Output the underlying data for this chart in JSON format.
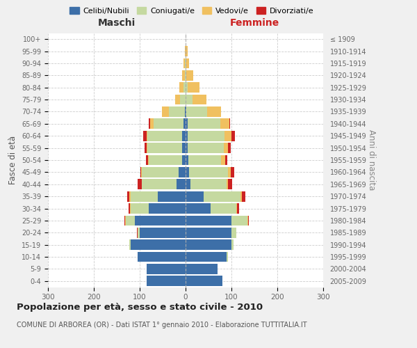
{
  "age_groups_bottom_to_top": [
    "0-4",
    "5-9",
    "10-14",
    "15-19",
    "20-24",
    "25-29",
    "30-34",
    "35-39",
    "40-44",
    "45-49",
    "50-54",
    "55-59",
    "60-64",
    "65-69",
    "70-74",
    "75-79",
    "80-84",
    "85-89",
    "90-94",
    "95-99",
    "100+"
  ],
  "birth_years_bottom_to_top": [
    "2005-2009",
    "2000-2004",
    "1995-1999",
    "1990-1994",
    "1985-1989",
    "1980-1984",
    "1975-1979",
    "1970-1974",
    "1965-1969",
    "1960-1964",
    "1955-1959",
    "1950-1954",
    "1945-1949",
    "1940-1944",
    "1935-1939",
    "1930-1934",
    "1925-1929",
    "1920-1924",
    "1915-1919",
    "1910-1914",
    "≤ 1909"
  ],
  "male": {
    "celibi": [
      85,
      85,
      105,
      120,
      100,
      110,
      80,
      60,
      20,
      15,
      8,
      8,
      8,
      5,
      2,
      0,
      0,
      0,
      0,
      0,
      0
    ],
    "coniugati": [
      0,
      0,
      0,
      2,
      5,
      20,
      40,
      60,
      75,
      80,
      72,
      75,
      75,
      65,
      35,
      12,
      5,
      2,
      2,
      0,
      0
    ],
    "vedovi": [
      0,
      0,
      0,
      0,
      0,
      2,
      1,
      2,
      1,
      2,
      2,
      2,
      2,
      8,
      15,
      10,
      8,
      5,
      3,
      2,
      0
    ],
    "divorziati": [
      0,
      0,
      0,
      0,
      1,
      2,
      3,
      5,
      8,
      2,
      4,
      5,
      8,
      2,
      0,
      0,
      0,
      0,
      0,
      0,
      0
    ]
  },
  "female": {
    "nubili": [
      80,
      70,
      90,
      100,
      100,
      100,
      55,
      40,
      10,
      8,
      6,
      5,
      5,
      5,
      2,
      0,
      0,
      0,
      0,
      0,
      0
    ],
    "coniugate": [
      0,
      0,
      2,
      5,
      10,
      35,
      55,
      80,
      80,
      85,
      72,
      78,
      80,
      70,
      45,
      15,
      5,
      2,
      0,
      0,
      0
    ],
    "vedove": [
      0,
      0,
      0,
      0,
      0,
      1,
      2,
      2,
      3,
      5,
      8,
      10,
      15,
      20,
      30,
      30,
      25,
      15,
      8,
      5,
      0
    ],
    "divorziate": [
      0,
      0,
      0,
      0,
      1,
      2,
      5,
      8,
      8,
      8,
      5,
      5,
      8,
      2,
      0,
      0,
      0,
      0,
      0,
      0,
      0
    ]
  },
  "colors": {
    "celibi": "#3d6fa8",
    "coniugati": "#c5d9a0",
    "vedovi": "#f0c060",
    "divorziati": "#cc2222"
  },
  "xlim": 300,
  "title": "Popolazione per età, sesso e stato civile - 2010",
  "subtitle": "COMUNE DI ARBOREA (OR) - Dati ISTAT 1° gennaio 2010 - Elaborazione TUTTITALIA.IT",
  "ylabel_left": "Fasce di età",
  "ylabel_right": "Anni di nascita",
  "xlabel_left": "Maschi",
  "xlabel_right": "Femmine",
  "bg_color": "#f0f0f0",
  "plot_bg": "#ffffff"
}
